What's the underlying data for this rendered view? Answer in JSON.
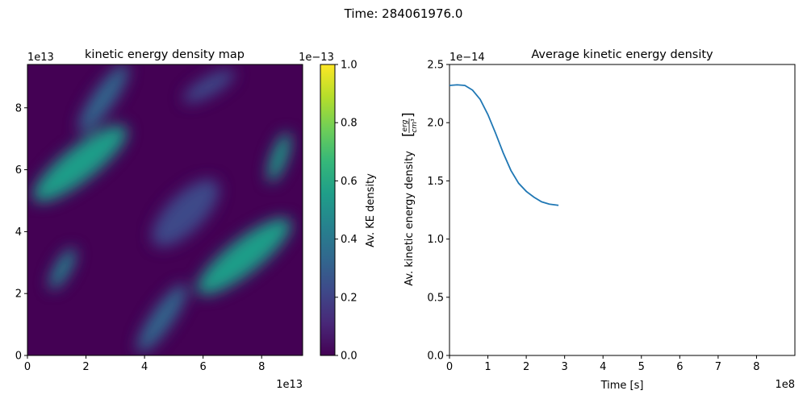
{
  "figure": {
    "suptitle": "Time: 284061976.0"
  },
  "colors": {
    "line": "#1f77b4",
    "viridis": [
      "#440154",
      "#482878",
      "#3e4989",
      "#31688e",
      "#26828e",
      "#1f9e89",
      "#35b779",
      "#6ece58",
      "#b5de2b",
      "#fde725"
    ],
    "map_base": "#440154"
  },
  "chart_data": [
    {
      "type": "heatmap",
      "title": "kinetic energy density map",
      "xlabel": "",
      "ylabel": "",
      "xlim": [
        0,
        94000000000000.0
      ],
      "ylim": [
        0,
        94000000000000.0
      ],
      "x_ticks": [
        "0",
        "2",
        "4",
        "6",
        "8"
      ],
      "y_ticks": [
        "0",
        "2",
        "4",
        "6",
        "8"
      ],
      "x_offset": "1e13",
      "y_offset": "1e13",
      "colorbar": {
        "label": "Av. KE density",
        "offset": "1e−13",
        "range": [
          0,
          1.0
        ],
        "ticks": [
          "0.0",
          "0.2",
          "0.4",
          "0.6",
          "0.8",
          "1.0"
        ]
      },
      "features": [
        {
          "x": 18000000000000.0,
          "y": 62000000000000.0,
          "value": 0.6,
          "angle": -38,
          "length": 40000000000000.0,
          "width": 11000000000000.0
        },
        {
          "x": 74000000000000.0,
          "y": 32000000000000.0,
          "value": 0.58,
          "angle": -38,
          "length": 40000000000000.0,
          "width": 11000000000000.0
        },
        {
          "x": 26000000000000.0,
          "y": 83000000000000.0,
          "value": 0.3,
          "angle": -55,
          "length": 28000000000000.0,
          "width": 7000000000000.0
        },
        {
          "x": 46000000000000.0,
          "y": 12000000000000.0,
          "value": 0.28,
          "angle": -55,
          "length": 28000000000000.0,
          "width": 7000000000000.0
        },
        {
          "x": 86000000000000.0,
          "y": 64000000000000.0,
          "value": 0.5,
          "angle": -70,
          "length": 18000000000000.0,
          "width": 5000000000000.0
        },
        {
          "x": 12000000000000.0,
          "y": 28000000000000.0,
          "value": 0.45,
          "angle": -60,
          "length": 16000000000000.0,
          "width": 5000000000000.0
        },
        {
          "x": 62000000000000.0,
          "y": 87000000000000.0,
          "value": 0.25,
          "angle": -30,
          "length": 20000000000000.0,
          "width": 6000000000000.0
        },
        {
          "x": 54000000000000.0,
          "y": 46000000000000.0,
          "value": 0.2,
          "angle": -45,
          "length": 30000000000000.0,
          "width": 12000000000000.0
        }
      ]
    },
    {
      "type": "line",
      "title": "Average kinetic energy density",
      "xlabel": "Time [s]",
      "ylabel": "Av. kinetic energy density",
      "ylabel_unit": {
        "numerator": "erg",
        "denominator": "cm³"
      },
      "xlim": [
        0,
        900000000.0
      ],
      "ylim": [
        0,
        2.5e-14
      ],
      "x_ticks": [
        "0",
        "1",
        "2",
        "3",
        "4",
        "5",
        "6",
        "7",
        "8"
      ],
      "y_ticks": [
        "0.0",
        "0.5",
        "1.0",
        "1.5",
        "2.0",
        "2.5"
      ],
      "x_offset": "1e8",
      "y_offset": "1e−14",
      "series": [
        {
          "x": [
            0,
            20000000.0,
            40000000.0,
            60000000.0,
            80000000.0,
            100000000.0,
            120000000.0,
            140000000.0,
            160000000.0,
            180000000.0,
            200000000.0,
            220000000.0,
            240000000.0,
            260000000.0,
            284000000.0
          ],
          "y": [
            2.32e-14,
            2.325e-14,
            2.32e-14,
            2.28e-14,
            2.2e-14,
            2.07e-14,
            1.91e-14,
            1.74e-14,
            1.59e-14,
            1.48e-14,
            1.41e-14,
            1.36e-14,
            1.32e-14,
            1.3e-14,
            1.29e-14
          ]
        }
      ]
    }
  ]
}
